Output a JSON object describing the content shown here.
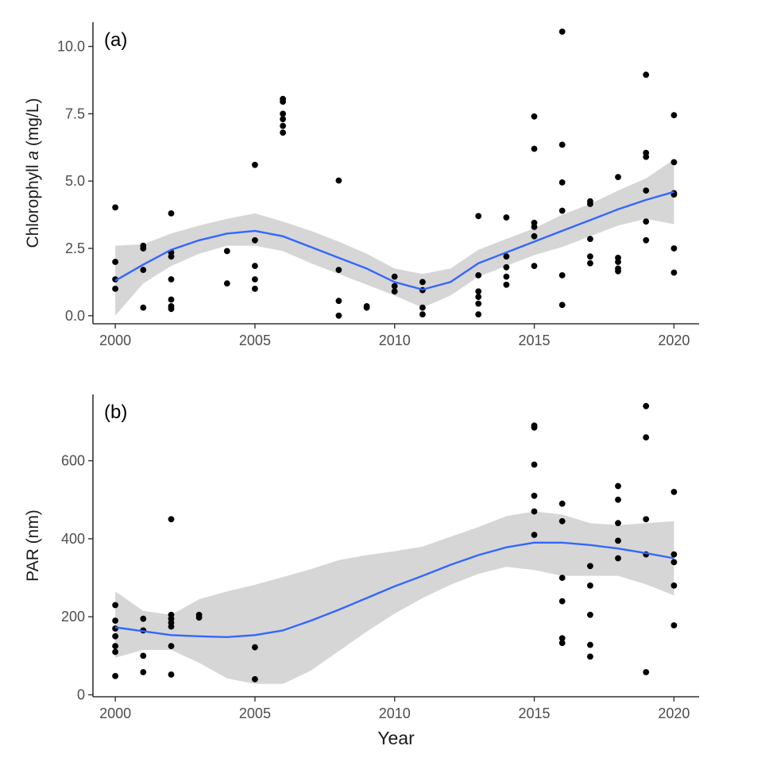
{
  "colors": {
    "points": "#000000",
    "smooth_line": "#3366ff",
    "ribbon": "#c8c8c8",
    "axis": "#333333",
    "tick_text": "#4d4d4d"
  },
  "chart_data": [
    {
      "type": "scatter",
      "panel_label": "(a)",
      "ylabel_prefix": "Chlorophyll ",
      "ylabel_italic": "a",
      "ylabel_suffix": " (mg/L)",
      "xlabel": "",
      "xlim": [
        1999.2,
        2020.9
      ],
      "ylim": [
        -0.3,
        10.9
      ],
      "x_ticks": [
        2000,
        2005,
        2010,
        2015,
        2020
      ],
      "x_tick_labels": [
        "2000",
        "2005",
        "2010",
        "2015",
        "2020"
      ],
      "y_ticks": [
        0,
        2.5,
        5,
        7.5,
        10
      ],
      "y_tick_labels": [
        "0.0",
        "2.5",
        "5.0",
        "7.5",
        "10.0"
      ],
      "grid": false,
      "points": [
        [
          2000,
          4.02
        ],
        [
          2000,
          2.0
        ],
        [
          2000,
          1.35
        ],
        [
          2000,
          1.0
        ],
        [
          2001,
          2.6
        ],
        [
          2001,
          2.5
        ],
        [
          2001,
          1.7
        ],
        [
          2001,
          0.3
        ],
        [
          2002,
          3.8
        ],
        [
          2002,
          2.35
        ],
        [
          2002,
          2.2
        ],
        [
          2002,
          1.35
        ],
        [
          2002,
          0.6
        ],
        [
          2002,
          0.35
        ],
        [
          2002,
          0.25
        ],
        [
          2004,
          2.4
        ],
        [
          2004,
          1.2
        ],
        [
          2005,
          5.6
        ],
        [
          2005,
          2.8
        ],
        [
          2005,
          1.85
        ],
        [
          2005,
          1.35
        ],
        [
          2005,
          1.0
        ],
        [
          2006,
          8.05
        ],
        [
          2006,
          7.95
        ],
        [
          2006,
          7.5
        ],
        [
          2006,
          7.3
        ],
        [
          2006,
          7.05
        ],
        [
          2006,
          6.8
        ],
        [
          2008,
          5.02
        ],
        [
          2008,
          1.7
        ],
        [
          2008,
          0.55
        ],
        [
          2008,
          0.0
        ],
        [
          2009,
          0.35
        ],
        [
          2009,
          0.3
        ],
        [
          2010,
          1.45
        ],
        [
          2010,
          1.1
        ],
        [
          2010,
          0.9
        ],
        [
          2011,
          1.25
        ],
        [
          2011,
          0.95
        ],
        [
          2011,
          0.3
        ],
        [
          2011,
          0.05
        ],
        [
          2013,
          3.7
        ],
        [
          2013,
          1.5
        ],
        [
          2013,
          0.9
        ],
        [
          2013,
          0.7
        ],
        [
          2013,
          0.45
        ],
        [
          2013,
          0.05
        ],
        [
          2014,
          3.65
        ],
        [
          2014,
          2.2
        ],
        [
          2014,
          1.8
        ],
        [
          2014,
          1.45
        ],
        [
          2014,
          1.15
        ],
        [
          2015,
          7.4
        ],
        [
          2015,
          6.2
        ],
        [
          2015,
          3.45
        ],
        [
          2015,
          3.3
        ],
        [
          2015,
          2.95
        ],
        [
          2015,
          1.85
        ],
        [
          2016,
          10.55
        ],
        [
          2016,
          6.35
        ],
        [
          2016,
          4.95
        ],
        [
          2016,
          3.9
        ],
        [
          2016,
          1.5
        ],
        [
          2016,
          0.4
        ],
        [
          2017,
          4.25
        ],
        [
          2017,
          4.15
        ],
        [
          2017,
          2.85
        ],
        [
          2017,
          2.2
        ],
        [
          2017,
          1.95
        ],
        [
          2018,
          5.15
        ],
        [
          2018,
          2.15
        ],
        [
          2018,
          2.0
        ],
        [
          2018,
          1.75
        ],
        [
          2018,
          1.65
        ],
        [
          2019,
          8.95
        ],
        [
          2019,
          6.05
        ],
        [
          2019,
          5.9
        ],
        [
          2019,
          4.65
        ],
        [
          2019,
          3.5
        ],
        [
          2019,
          2.8
        ],
        [
          2020,
          7.45
        ],
        [
          2020,
          5.7
        ],
        [
          2020,
          4.55
        ],
        [
          2020,
          4.5
        ],
        [
          2020,
          2.5
        ],
        [
          2020,
          1.6
        ]
      ],
      "smooth": {
        "x": [
          2000,
          2001,
          2002,
          2003,
          2004,
          2005,
          2006,
          2007,
          2008,
          2009,
          2010,
          2011,
          2012,
          2013,
          2014,
          2015,
          2016,
          2017,
          2018,
          2019,
          2020
        ],
        "y": [
          1.3,
          1.9,
          2.45,
          2.8,
          3.05,
          3.15,
          2.95,
          2.55,
          2.15,
          1.75,
          1.25,
          0.97,
          1.25,
          1.95,
          2.35,
          2.75,
          3.15,
          3.55,
          3.95,
          4.3,
          4.6
        ],
        "lower": [
          0.0,
          1.2,
          1.85,
          2.3,
          2.6,
          2.6,
          2.4,
          1.95,
          1.55,
          1.15,
          0.75,
          0.3,
          0.75,
          1.45,
          1.85,
          2.25,
          2.55,
          2.95,
          3.35,
          3.6,
          3.4
        ],
        "upper": [
          2.6,
          2.65,
          3.05,
          3.35,
          3.6,
          3.8,
          3.5,
          3.15,
          2.75,
          2.3,
          1.75,
          1.55,
          1.75,
          2.45,
          2.85,
          3.25,
          3.75,
          4.15,
          4.65,
          5.1,
          5.8
        ]
      }
    },
    {
      "type": "scatter",
      "panel_label": "(b)",
      "ylabel_prefix": "PAR (nm)",
      "ylabel_italic": "",
      "ylabel_suffix": "",
      "xlabel": "Year",
      "xlim": [
        1999.2,
        2020.9
      ],
      "ylim": [
        -5,
        770
      ],
      "x_ticks": [
        2000,
        2005,
        2010,
        2015,
        2020
      ],
      "x_tick_labels": [
        "2000",
        "2005",
        "2010",
        "2015",
        "2020"
      ],
      "y_ticks": [
        0,
        200,
        400,
        600
      ],
      "y_tick_labels": [
        "0",
        "200",
        "400",
        "600"
      ],
      "grid": false,
      "points": [
        [
          2000,
          230
        ],
        [
          2000,
          190
        ],
        [
          2000,
          170
        ],
        [
          2000,
          150
        ],
        [
          2000,
          125
        ],
        [
          2000,
          110
        ],
        [
          2000,
          48
        ],
        [
          2001,
          195
        ],
        [
          2001,
          165
        ],
        [
          2001,
          100
        ],
        [
          2001,
          58
        ],
        [
          2002,
          450
        ],
        [
          2002,
          205
        ],
        [
          2002,
          195
        ],
        [
          2002,
          185
        ],
        [
          2002,
          175
        ],
        [
          2002,
          125
        ],
        [
          2002,
          52
        ],
        [
          2003,
          205
        ],
        [
          2003,
          198
        ],
        [
          2005,
          122
        ],
        [
          2005,
          40
        ],
        [
          2015,
          690
        ],
        [
          2015,
          685
        ],
        [
          2015,
          590
        ],
        [
          2015,
          510
        ],
        [
          2015,
          470
        ],
        [
          2015,
          410
        ],
        [
          2016,
          490
        ],
        [
          2016,
          445
        ],
        [
          2016,
          300
        ],
        [
          2016,
          240
        ],
        [
          2016,
          145
        ],
        [
          2016,
          133
        ],
        [
          2017,
          330
        ],
        [
          2017,
          280
        ],
        [
          2017,
          205
        ],
        [
          2017,
          128
        ],
        [
          2017,
          98
        ],
        [
          2018,
          535
        ],
        [
          2018,
          500
        ],
        [
          2018,
          440
        ],
        [
          2018,
          395
        ],
        [
          2018,
          350
        ],
        [
          2019,
          740
        ],
        [
          2019,
          660
        ],
        [
          2019,
          450
        ],
        [
          2019,
          360
        ],
        [
          2019,
          58
        ],
        [
          2020,
          520
        ],
        [
          2020,
          360
        ],
        [
          2020,
          340
        ],
        [
          2020,
          280
        ],
        [
          2020,
          178
        ]
      ],
      "smooth": {
        "x": [
          2000,
          2001,
          2002,
          2003,
          2004,
          2005,
          2006,
          2007,
          2008,
          2009,
          2010,
          2011,
          2012,
          2013,
          2014,
          2015,
          2016,
          2017,
          2018,
          2019,
          2020
        ],
        "y": [
          173,
          163,
          153,
          150,
          148,
          153,
          165,
          190,
          218,
          248,
          278,
          305,
          333,
          358,
          378,
          390,
          390,
          384,
          375,
          363,
          350
        ],
        "lower": [
          95,
          115,
          115,
          82,
          42,
          28,
          28,
          62,
          112,
          162,
          208,
          248,
          282,
          310,
          328,
          320,
          305,
          305,
          305,
          283,
          255
        ],
        "upper": [
          265,
          215,
          205,
          245,
          265,
          282,
          302,
          322,
          345,
          358,
          368,
          380,
          405,
          430,
          458,
          470,
          462,
          440,
          435,
          440,
          445
        ]
      }
    }
  ]
}
